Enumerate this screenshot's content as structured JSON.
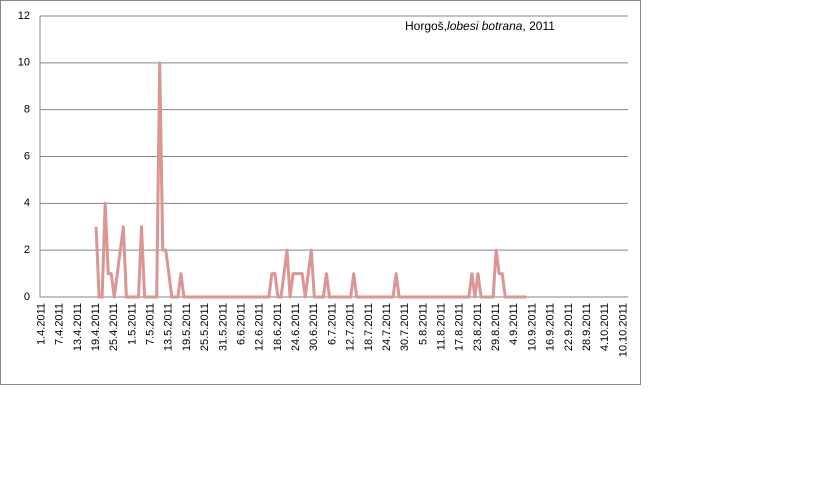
{
  "chart_data": {
    "type": "line",
    "title": [
      "Horgoš,",
      "lobesi botrana",
      ", 2011"
    ],
    "categories": [
      "1.4.2011",
      null,
      null,
      null,
      null,
      null,
      "7.4.2011",
      null,
      null,
      null,
      null,
      null,
      "13.4.2011",
      null,
      null,
      null,
      null,
      null,
      "19.4.2011",
      null,
      null,
      null,
      null,
      null,
      "25.4.2011",
      null,
      null,
      null,
      null,
      null,
      "1.5.2011",
      null,
      null,
      null,
      null,
      null,
      "7.5.2011",
      null,
      null,
      null,
      null,
      null,
      "13.5.2011",
      null,
      null,
      null,
      null,
      null,
      "19.5.2011",
      null,
      null,
      null,
      null,
      null,
      "25.5.2011",
      null,
      null,
      null,
      null,
      null,
      "31.5.2011",
      null,
      null,
      null,
      null,
      null,
      "6.6.2011",
      null,
      null,
      null,
      null,
      null,
      "12.6.2011",
      null,
      null,
      null,
      null,
      null,
      "18.6.2011",
      null,
      null,
      null,
      null,
      null,
      "24.6.2011",
      null,
      null,
      null,
      null,
      null,
      "30.6.2011",
      null,
      null,
      null,
      null,
      null,
      "6.7.2011",
      null,
      null,
      null,
      null,
      null,
      "12.7.2011",
      null,
      null,
      null,
      null,
      null,
      "18.7.2011",
      null,
      null,
      null,
      null,
      null,
      "24.7.2011",
      null,
      null,
      null,
      null,
      null,
      "30.7.2011",
      null,
      null,
      null,
      null,
      null,
      "5.8.2011",
      null,
      null,
      null,
      null,
      null,
      "11.8.2011",
      null,
      null,
      null,
      null,
      null,
      "17.8.2011",
      null,
      null,
      null,
      null,
      null,
      "23.8.2011",
      null,
      null,
      null,
      null,
      null,
      "29.8.2011",
      null,
      null,
      null,
      null,
      null,
      "4.9.2011",
      null,
      null,
      null,
      null,
      null,
      "10.9.2011",
      null,
      null,
      null,
      null,
      null,
      "16.9.2011",
      null,
      null,
      null,
      null,
      null,
      "22.9.2011",
      null,
      null,
      null,
      null,
      null,
      "28.9.2011",
      null,
      null,
      null,
      null,
      null,
      "4.10.2011",
      null,
      null,
      null,
      null,
      null,
      "10.10.2011",
      null
    ],
    "values": [
      null,
      null,
      null,
      null,
      null,
      null,
      null,
      null,
      null,
      null,
      null,
      null,
      null,
      null,
      null,
      null,
      null,
      null,
      3,
      0,
      0,
      4,
      1,
      1,
      0,
      1,
      2,
      3,
      0,
      0,
      0,
      0,
      0,
      3,
      0,
      0,
      0,
      0,
      0,
      10,
      2,
      2,
      1,
      0,
      0,
      0,
      1,
      0,
      0,
      0,
      0,
      0,
      0,
      0,
      0,
      0,
      0,
      0,
      0,
      0,
      0,
      0,
      0,
      0,
      0,
      0,
      0,
      0,
      0,
      0,
      0,
      0,
      0,
      0,
      0,
      0,
      1,
      1,
      0,
      0,
      1,
      2,
      0,
      1,
      1,
      1,
      1,
      0,
      1,
      2,
      0,
      0,
      0,
      0,
      1,
      0,
      0,
      0,
      0,
      0,
      0,
      0,
      0,
      1,
      0,
      0,
      0,
      0,
      0,
      0,
      0,
      0,
      0,
      0,
      0,
      0,
      0,
      1,
      0,
      0,
      0,
      0,
      0,
      0,
      0,
      0,
      0,
      0,
      0,
      0,
      0,
      0,
      0,
      0,
      0,
      0,
      0,
      0,
      0,
      0,
      0,
      0,
      1,
      0,
      1,
      0,
      0,
      0,
      0,
      0,
      2,
      1,
      1,
      0,
      0,
      0,
      0,
      0,
      0,
      0,
      0,
      null,
      null,
      null,
      null,
      null,
      null,
      null,
      null,
      null,
      null,
      null,
      null,
      null,
      null,
      null,
      null,
      null,
      null,
      null,
      null,
      null,
      null,
      null,
      null,
      null,
      null,
      null,
      null,
      null,
      null,
      null,
      null,
      null
    ],
    "color": "#d99694",
    "ylim": [
      0,
      12
    ],
    "yticks": [
      0,
      2,
      4,
      6,
      8,
      10,
      12
    ],
    "grid": true
  }
}
